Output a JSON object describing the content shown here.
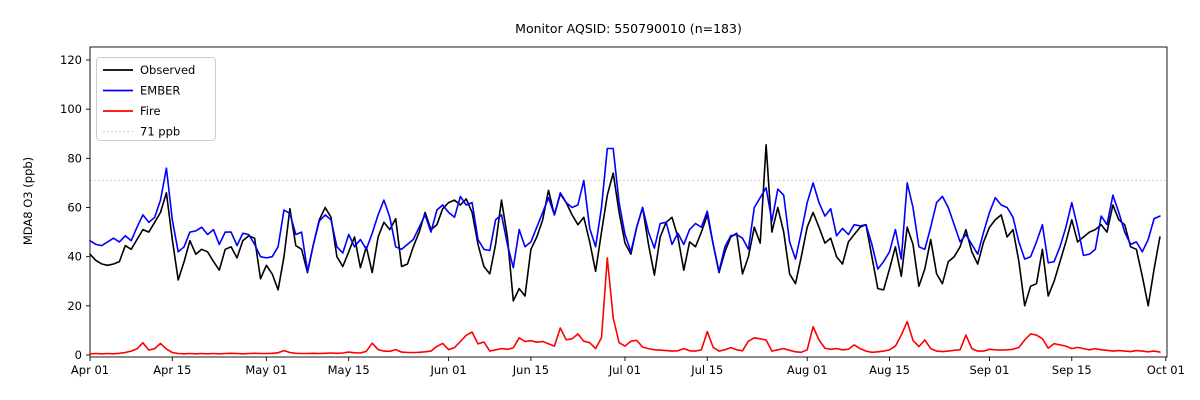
{
  "title": "Monitor AQSID: 550790010 (n=183)",
  "y_axis": {
    "label": "MDA8 O3 (ppb)",
    "ticks": [
      0,
      20,
      40,
      60,
      80,
      100,
      120
    ]
  },
  "x_axis": {
    "ticks": [
      {
        "label": "Apr 01",
        "day": 0
      },
      {
        "label": "Apr 15",
        "day": 14
      },
      {
        "label": "May 01",
        "day": 30
      },
      {
        "label": "May 15",
        "day": 44
      },
      {
        "label": "Jun 01",
        "day": 61
      },
      {
        "label": "Jun 15",
        "day": 75
      },
      {
        "label": "Jul 01",
        "day": 91
      },
      {
        "label": "Jul 15",
        "day": 105
      },
      {
        "label": "Aug 01",
        "day": 122
      },
      {
        "label": "Aug 15",
        "day": 136
      },
      {
        "label": "Sep 01",
        "day": 153
      },
      {
        "label": "Sep 15",
        "day": 167
      },
      {
        "label": "Oct 01",
        "day": 183
      }
    ]
  },
  "threshold": {
    "value": 71,
    "label": "71 ppb",
    "color": "#cccccc"
  },
  "legend": [
    {
      "label": "Observed",
      "color": "#000000",
      "style": "solid"
    },
    {
      "label": "EMBER",
      "color": "#0000ff",
      "style": "solid"
    },
    {
      "label": "Fire",
      "color": "#ff0000",
      "style": "solid"
    },
    {
      "label": "71 ppb",
      "color": "#cccccc",
      "style": "dotted"
    }
  ],
  "chart_data": {
    "type": "line",
    "title": "Monitor AQSID: 550790010 (n=183)",
    "xlabel": "",
    "ylabel": "MDA8 O3 (ppb)",
    "x_start": "Apr 01",
    "x_end": "Sep 30",
    "x_unit": "day",
    "n_points": 183,
    "ylim": [
      -2,
      125
    ],
    "grid": false,
    "legend_position": "upper-left",
    "threshold_line": 71,
    "series": [
      {
        "name": "Observed",
        "color": "#000000",
        "values": [
          41,
          38.5,
          37,
          36.5,
          37,
          38,
          44.5,
          43,
          47,
          51,
          50,
          54,
          58,
          66,
          47,
          30.5,
          38,
          46.5,
          41,
          43,
          42,
          38,
          34.5,
          43,
          44,
          39.5,
          46.5,
          48.5,
          47.5,
          31,
          36.5,
          33,
          26.5,
          40,
          59.5,
          44.5,
          43,
          33.5,
          45,
          55,
          60,
          56,
          40,
          36,
          42,
          48,
          35.5,
          44,
          33.5,
          48,
          54,
          51,
          55.5,
          36,
          37,
          44,
          50,
          58,
          51,
          53,
          59.5,
          62,
          63,
          61,
          63.5,
          58,
          45,
          36,
          33,
          45,
          63,
          48,
          22,
          27,
          24,
          43,
          48,
          55,
          67,
          57,
          65.5,
          62,
          57,
          53,
          56,
          46,
          34,
          50,
          65,
          74,
          58,
          45.5,
          41,
          52,
          60,
          45,
          32.5,
          48,
          54,
          56,
          48,
          34.5,
          46,
          44,
          50,
          57,
          45,
          33.5,
          42,
          48,
          49.5,
          33,
          40,
          52,
          45.5,
          85.5,
          50,
          60,
          50,
          33,
          29,
          40,
          52,
          58,
          52,
          45.5,
          47.5,
          40,
          37,
          46,
          49,
          52,
          53,
          40,
          27,
          26.5,
          35,
          44,
          32,
          52,
          45,
          28,
          35,
          47,
          33,
          29,
          38,
          40,
          44,
          51,
          42,
          37,
          46,
          52,
          55,
          57,
          48,
          51,
          38,
          20,
          28,
          29,
          43,
          24,
          30,
          38,
          46,
          55,
          46,
          48,
          50,
          51,
          53,
          50,
          61,
          55,
          53,
          44,
          43,
          32,
          20,
          35,
          48
        ]
      },
      {
        "name": "EMBER",
        "color": "#0000ff",
        "values": [
          46.5,
          45,
          44.5,
          46,
          47.5,
          46,
          48.5,
          46.5,
          52,
          57,
          54,
          56,
          63,
          76,
          55,
          42,
          44,
          50,
          50.5,
          52,
          49,
          51,
          45,
          50,
          50,
          44.5,
          49.5,
          49,
          45,
          40,
          39.5,
          40,
          44,
          59,
          57.5,
          49,
          50,
          34,
          45,
          54.5,
          57,
          55,
          44,
          41.5,
          49,
          44,
          47,
          43,
          49.5,
          57,
          63,
          56,
          44,
          43,
          45,
          47,
          52,
          57,
          50,
          59,
          61,
          58,
          56,
          64.5,
          61,
          62,
          47,
          43,
          42.5,
          55,
          57,
          45,
          35.5,
          51,
          44,
          46,
          52,
          58,
          64,
          57,
          66,
          62,
          60,
          61,
          71,
          51.5,
          44,
          60,
          84,
          84,
          62,
          49,
          42,
          52,
          60,
          50,
          43.5,
          53.5,
          54,
          45,
          49.5,
          45,
          51,
          53.5,
          52,
          58.5,
          45,
          34,
          44,
          48.5,
          49,
          47.5,
          43,
          60,
          64,
          68,
          54.5,
          67.5,
          65,
          46,
          39,
          50,
          62,
          70,
          62,
          56.5,
          59.5,
          48.5,
          51.5,
          49,
          53,
          52.5,
          53,
          45,
          35,
          38,
          42,
          51,
          39,
          70,
          60,
          44,
          43,
          52,
          62,
          64.5,
          60,
          53,
          46,
          49,
          45,
          41,
          50,
          58,
          64,
          61,
          60,
          56,
          46,
          39,
          40,
          46,
          53,
          37.5,
          38,
          44,
          52,
          62,
          52,
          40.5,
          41,
          43,
          56.5,
          53,
          65,
          58,
          50,
          45,
          46,
          42,
          47,
          55.5,
          56.5
        ]
      },
      {
        "name": "Fire",
        "color": "#ff0000",
        "values": [
          0.5,
          0.6,
          0.5,
          0.6,
          0.5,
          0.7,
          1.0,
          1.6,
          2.5,
          5.0,
          2.0,
          2.6,
          4.7,
          2.4,
          1.0,
          0.6,
          0.5,
          0.6,
          0.5,
          0.6,
          0.5,
          0.6,
          0.5,
          0.6,
          0.7,
          0.6,
          0.5,
          0.6,
          0.7,
          0.6,
          0.6,
          0.7,
          0.9,
          1.8,
          1.0,
          0.7,
          0.6,
          0.6,
          0.7,
          0.6,
          0.7,
          0.8,
          0.7,
          0.8,
          1.2,
          0.9,
          0.8,
          1.5,
          4.8,
          2.2,
          1.6,
          1.5,
          2.2,
          1.2,
          1.0,
          1.0,
          1.1,
          1.3,
          1.6,
          3.5,
          4.7,
          2.2,
          3.0,
          5.5,
          8.0,
          9.3,
          4.5,
          5.3,
          1.6,
          2.1,
          2.6,
          2.3,
          2.9,
          7.0,
          5.5,
          5.8,
          5.2,
          5.5,
          4.6,
          3.6,
          11.0,
          6.2,
          6.6,
          8.6,
          5.6,
          5.0,
          2.6,
          7.0,
          39.5,
          15.0,
          5.0,
          3.6,
          5.6,
          6.0,
          3.2,
          2.6,
          2.1,
          2.0,
          1.8,
          1.6,
          1.7,
          2.6,
          1.7,
          1.6,
          2.1,
          9.5,
          3.1,
          1.6,
          2.1,
          3.0,
          2.1,
          1.7,
          5.6,
          7.0,
          6.6,
          6.1,
          1.6,
          2.1,
          2.6,
          1.9,
          1.3,
          1.1,
          2.1,
          11.5,
          6.1,
          2.8,
          2.3,
          2.6,
          2.1,
          2.3,
          4.1,
          2.6,
          1.6,
          1.1,
          1.3,
          1.6,
          2.1,
          3.6,
          8.1,
          13.6,
          6.0,
          3.4,
          6.1,
          2.6,
          1.6,
          1.4,
          1.6,
          1.9,
          2.1,
          8.1,
          2.6,
          1.6,
          1.6,
          2.3,
          2.1,
          2.0,
          2.1,
          2.3,
          3.1,
          6.1,
          8.6,
          8.1,
          6.6,
          2.8,
          4.6,
          4.1,
          3.6,
          2.6,
          3.1,
          2.6,
          2.1,
          2.6,
          2.1,
          1.9,
          1.6,
          1.8,
          1.6,
          1.4,
          1.8,
          1.6,
          1.3,
          1.6,
          1.2
        ]
      }
    ]
  }
}
